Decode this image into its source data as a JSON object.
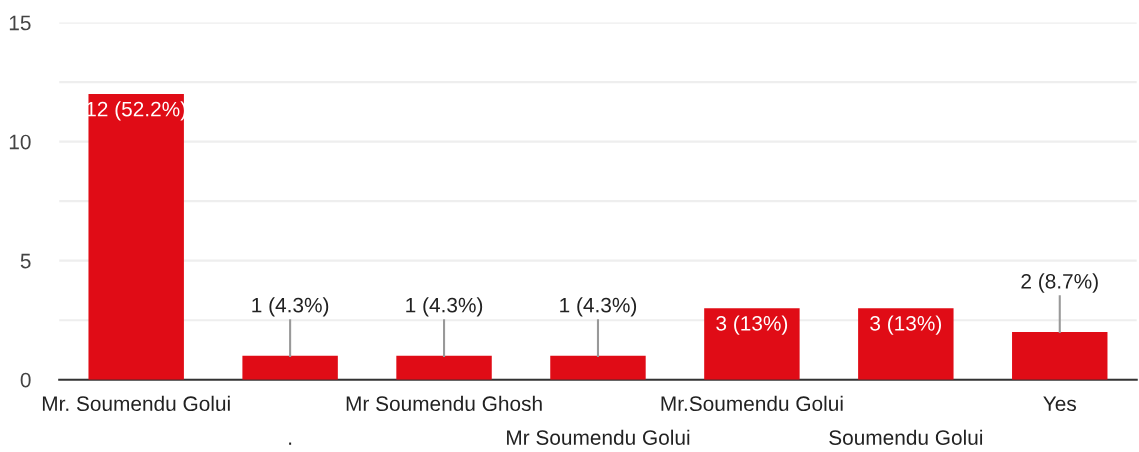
{
  "chart_data": {
    "type": "bar",
    "categories": [
      "Mr. Soumendu Golui",
      ".",
      "Mr Soumendu Ghosh",
      "Mr Soumendu Golui",
      "Mr.Soumendu Golui",
      "Soumendu Golui",
      "Yes"
    ],
    "values": [
      12,
      1,
      1,
      1,
      3,
      3,
      2
    ],
    "value_labels": [
      "12 (52.2%)",
      "1 (4.3%)",
      "1 (4.3%)",
      "1 (4.3%)",
      "3 (13%)",
      "3 (13%)",
      "2 (8.7%)"
    ],
    "color": "#e00c16",
    "ylim": [
      0,
      15
    ],
    "yticks": [
      0,
      {
        "value": 2.5,
        "label": null
      },
      5,
      {
        "value": 7.5,
        "label": null
      },
      10,
      {
        "value": 12.5,
        "label": null
      },
      15
    ],
    "grid": "y"
  }
}
